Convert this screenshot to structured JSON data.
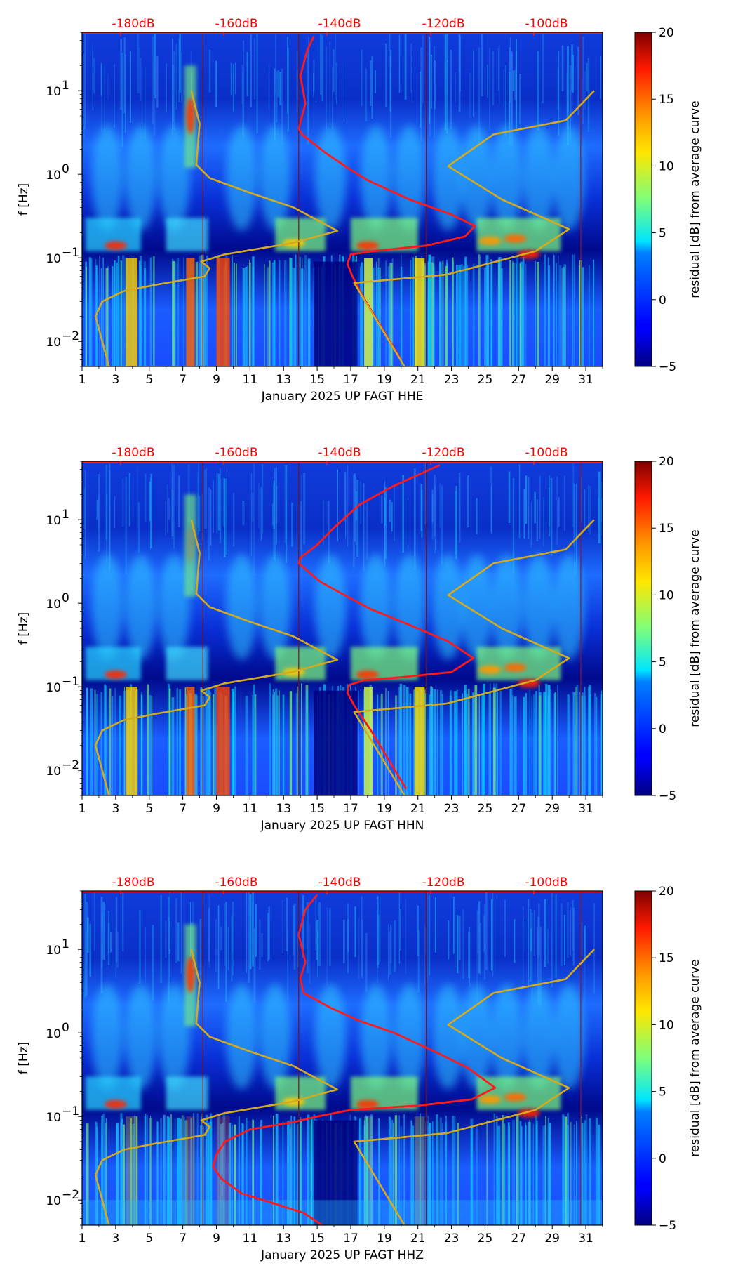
{
  "chart_data": [
    {
      "type": "heatmap",
      "channel": "HHE",
      "xlabel": "January 2025 UP FAGT  HHE",
      "ylabel": "f [Hz]",
      "x_ticks": [
        "1",
        "3",
        "5",
        "7",
        "9",
        "11",
        "13",
        "15",
        "17",
        "19",
        "21",
        "23",
        "25",
        "27",
        "29",
        "31"
      ],
      "xlim": [
        1,
        32
      ],
      "y_scale": "log",
      "ylim": [
        0.005,
        50
      ],
      "y_ticks": [
        {
          "base": "10",
          "exp": "−2"
        },
        {
          "base": "10",
          "exp": "−1"
        },
        {
          "base": "10",
          "exp": "0"
        },
        {
          "base": "10",
          "exp": "1"
        }
      ],
      "db_labels": [
        "-180dB",
        "-160dB",
        "-140dB",
        "-120dB",
        "-100dB"
      ],
      "colorbar": {
        "label": "residual [dB] from average curve",
        "range": [
          -5,
          20
        ],
        "ticks": [
          "−5",
          "0",
          "5",
          "10",
          "15",
          "20"
        ]
      },
      "overlay_lines": [
        {
          "name": "average PSD curve",
          "color": "#ff1a1a",
          "points": [
            [
              14.8,
              45
            ],
            [
              14.4,
              30
            ],
            [
              14.0,
              15
            ],
            [
              14.3,
              7
            ],
            [
              13.9,
              3.5
            ],
            [
              14.1,
              3
            ],
            [
              15.5,
              1.8
            ],
            [
              16.8,
              1.2
            ],
            [
              18.0,
              0.85
            ],
            [
              20.5,
              0.5
            ],
            [
              23.0,
              0.33
            ],
            [
              24.4,
              0.24
            ],
            [
              23.8,
              0.18
            ],
            [
              21.5,
              0.14
            ],
            [
              18.3,
              0.12
            ],
            [
              17.0,
              0.11
            ],
            [
              16.8,
              0.085
            ],
            [
              17.1,
              0.06
            ],
            [
              17.7,
              0.035
            ],
            [
              18.8,
              0.015
            ],
            [
              20.0,
              0.006
            ]
          ]
        },
        {
          "name": "reference noise model",
          "color": "#d4aa1e",
          "points": [
            [
              2.6,
              0.005
            ],
            [
              2.2,
              0.01
            ],
            [
              1.8,
              0.02
            ],
            [
              2.2,
              0.03
            ],
            [
              3.5,
              0.04
            ],
            [
              5.5,
              0.048
            ],
            [
              8.3,
              0.06
            ],
            [
              8.6,
              0.075
            ],
            [
              8.1,
              0.09
            ],
            [
              9.5,
              0.11
            ],
            [
              13.5,
              0.15
            ],
            [
              16.2,
              0.21
            ],
            [
              13.6,
              0.4
            ],
            [
              11.0,
              0.6
            ],
            [
              8.6,
              0.9
            ],
            [
              7.8,
              1.3
            ],
            [
              8.0,
              4
            ],
            [
              7.5,
              10
            ]
          ]
        },
        {
          "name": "reference noise model",
          "color": "#d4aa1e",
          "points": [
            [
              20.2,
              0.005
            ],
            [
              17.2,
              0.05
            ],
            [
              22.7,
              0.063
            ],
            [
              28.0,
              0.12
            ],
            [
              30.0,
              0.22
            ],
            [
              26.0,
              0.5
            ],
            [
              22.8,
              1.25
            ],
            [
              25.5,
              3
            ],
            [
              29.8,
              4.4
            ],
            [
              31.5,
              10
            ]
          ]
        }
      ],
      "vertical_markers": [
        {
          "x": 8.2,
          "color": "#7a1010"
        },
        {
          "x": 13.9,
          "color": "#7a1010"
        },
        {
          "x": 21.5,
          "color": "#7a1010"
        },
        {
          "x": 30.7,
          "color": "#a01010"
        }
      ]
    },
    {
      "type": "heatmap",
      "channel": "HHN",
      "xlabel": "January 2025 UP FAGT  HHN",
      "ylabel": "f [Hz]",
      "x_ticks": [
        "1",
        "3",
        "5",
        "7",
        "9",
        "11",
        "13",
        "15",
        "17",
        "19",
        "21",
        "23",
        "25",
        "27",
        "29",
        "31"
      ],
      "xlim": [
        1,
        32
      ],
      "y_scale": "log",
      "ylim": [
        0.005,
        50
      ],
      "y_ticks": [
        {
          "base": "10",
          "exp": "−2"
        },
        {
          "base": "10",
          "exp": "−1"
        },
        {
          "base": "10",
          "exp": "0"
        },
        {
          "base": "10",
          "exp": "1"
        }
      ],
      "db_labels": [
        "-180dB",
        "-160dB",
        "-140dB",
        "-120dB",
        "-100dB"
      ],
      "colorbar": {
        "label": "residual [dB] from average curve",
        "range": [
          -5,
          20
        ],
        "ticks": [
          "−5",
          "0",
          "5",
          "10",
          "15",
          "20"
        ]
      },
      "overlay_lines": [
        {
          "name": "average PSD curve",
          "color": "#ff1a1a",
          "points": [
            [
              22.3,
              45
            ],
            [
              19.5,
              25
            ],
            [
              17.5,
              15
            ],
            [
              16.0,
              8
            ],
            [
              15.0,
              5
            ],
            [
              14.0,
              3.5
            ],
            [
              13.9,
              3
            ],
            [
              15.2,
              1.8
            ],
            [
              16.8,
              1.2
            ],
            [
              18.2,
              0.85
            ],
            [
              20.5,
              0.55
            ],
            [
              22.8,
              0.35
            ],
            [
              24.3,
              0.22
            ],
            [
              23.0,
              0.15
            ],
            [
              20.0,
              0.13
            ],
            [
              17.8,
              0.12
            ],
            [
              16.9,
              0.105
            ],
            [
              16.8,
              0.085
            ],
            [
              17.2,
              0.06
            ],
            [
              18.2,
              0.03
            ],
            [
              19.4,
              0.012
            ],
            [
              20.3,
              0.006
            ]
          ]
        },
        {
          "name": "reference noise model",
          "color": "#d4aa1e",
          "points": [
            [
              2.6,
              0.005
            ],
            [
              2.2,
              0.01
            ],
            [
              1.8,
              0.02
            ],
            [
              2.2,
              0.03
            ],
            [
              3.5,
              0.04
            ],
            [
              5.5,
              0.048
            ],
            [
              8.3,
              0.06
            ],
            [
              8.6,
              0.075
            ],
            [
              8.1,
              0.09
            ],
            [
              9.5,
              0.11
            ],
            [
              13.5,
              0.15
            ],
            [
              16.2,
              0.21
            ],
            [
              13.6,
              0.4
            ],
            [
              11.0,
              0.6
            ],
            [
              8.6,
              0.9
            ],
            [
              7.8,
              1.3
            ],
            [
              8.0,
              4
            ],
            [
              7.5,
              10
            ]
          ]
        },
        {
          "name": "reference noise model",
          "color": "#d4aa1e",
          "points": [
            [
              20.2,
              0.005
            ],
            [
              17.2,
              0.05
            ],
            [
              22.7,
              0.063
            ],
            [
              28.0,
              0.12
            ],
            [
              30.0,
              0.22
            ],
            [
              26.0,
              0.5
            ],
            [
              22.8,
              1.25
            ],
            [
              25.5,
              3
            ],
            [
              29.8,
              4.4
            ],
            [
              31.5,
              10
            ]
          ]
        }
      ],
      "vertical_markers": [
        {
          "x": 8.2,
          "color": "#7a1010"
        },
        {
          "x": 13.9,
          "color": "#7a1010"
        },
        {
          "x": 21.5,
          "color": "#7a1010"
        },
        {
          "x": 30.7,
          "color": "#a01010"
        }
      ]
    },
    {
      "type": "heatmap",
      "channel": "HHZ",
      "xlabel": "January 2025 UP FAGT  HHZ",
      "ylabel": "f [Hz]",
      "x_ticks": [
        "1",
        "3",
        "5",
        "7",
        "9",
        "11",
        "13",
        "15",
        "17",
        "19",
        "21",
        "23",
        "25",
        "27",
        "29",
        "31"
      ],
      "xlim": [
        1,
        32
      ],
      "y_scale": "log",
      "ylim": [
        0.005,
        50
      ],
      "y_ticks": [
        {
          "base": "10",
          "exp": "−2"
        },
        {
          "base": "10",
          "exp": "−1"
        },
        {
          "base": "10",
          "exp": "0"
        },
        {
          "base": "10",
          "exp": "1"
        }
      ],
      "db_labels": [
        "-180dB",
        "-160dB",
        "-140dB",
        "-120dB",
        "-100dB"
      ],
      "colorbar": {
        "label": "residual [dB] from average curve",
        "range": [
          -5,
          20
        ],
        "ticks": [
          "−5",
          "0",
          "5",
          "10",
          "15",
          "20"
        ]
      },
      "overlay_lines": [
        {
          "name": "average PSD curve",
          "color": "#ff1a1a",
          "points": [
            [
              15.0,
              45
            ],
            [
              14.3,
              30
            ],
            [
              13.9,
              15
            ],
            [
              14.3,
              7
            ],
            [
              14.0,
              4.5
            ],
            [
              14.2,
              3
            ],
            [
              15.8,
              2
            ],
            [
              17.5,
              1.4
            ],
            [
              19.6,
              1
            ],
            [
              22.0,
              0.6
            ],
            [
              24.0,
              0.38
            ],
            [
              25.6,
              0.22
            ],
            [
              24.2,
              0.16
            ],
            [
              21.0,
              0.135
            ],
            [
              17.0,
              0.12
            ],
            [
              15.0,
              0.1
            ],
            [
              13.5,
              0.085
            ],
            [
              11.0,
              0.07
            ],
            [
              9.5,
              0.05
            ],
            [
              9.0,
              0.035
            ],
            [
              8.8,
              0.025
            ],
            [
              9.3,
              0.018
            ],
            [
              10.5,
              0.012
            ],
            [
              12.5,
              0.009
            ],
            [
              14.2,
              0.007
            ],
            [
              15.3,
              0.005
            ]
          ]
        },
        {
          "name": "reference noise model",
          "color": "#d4aa1e",
          "points": [
            [
              2.6,
              0.005
            ],
            [
              2.2,
              0.01
            ],
            [
              1.8,
              0.02
            ],
            [
              2.2,
              0.03
            ],
            [
              3.5,
              0.04
            ],
            [
              5.5,
              0.048
            ],
            [
              8.3,
              0.06
            ],
            [
              8.6,
              0.075
            ],
            [
              8.1,
              0.09
            ],
            [
              9.5,
              0.11
            ],
            [
              13.5,
              0.15
            ],
            [
              16.2,
              0.21
            ],
            [
              13.6,
              0.4
            ],
            [
              11.0,
              0.6
            ],
            [
              8.6,
              0.9
            ],
            [
              7.8,
              1.3
            ],
            [
              8.0,
              4
            ],
            [
              7.5,
              10
            ]
          ]
        },
        {
          "name": "reference noise model",
          "color": "#d4aa1e",
          "points": [
            [
              20.2,
              0.005
            ],
            [
              17.2,
              0.05
            ],
            [
              22.7,
              0.063
            ],
            [
              28.0,
              0.12
            ],
            [
              30.0,
              0.22
            ],
            [
              26.0,
              0.5
            ],
            [
              22.8,
              1.25
            ],
            [
              25.5,
              3
            ],
            [
              29.8,
              4.4
            ],
            [
              31.5,
              10
            ]
          ]
        }
      ],
      "vertical_markers": [
        {
          "x": 8.2,
          "color": "#7a1010"
        },
        {
          "x": 13.9,
          "color": "#7a1010"
        },
        {
          "x": 21.5,
          "color": "#7a1010"
        },
        {
          "x": 30.7,
          "color": "#a01010"
        }
      ]
    }
  ]
}
